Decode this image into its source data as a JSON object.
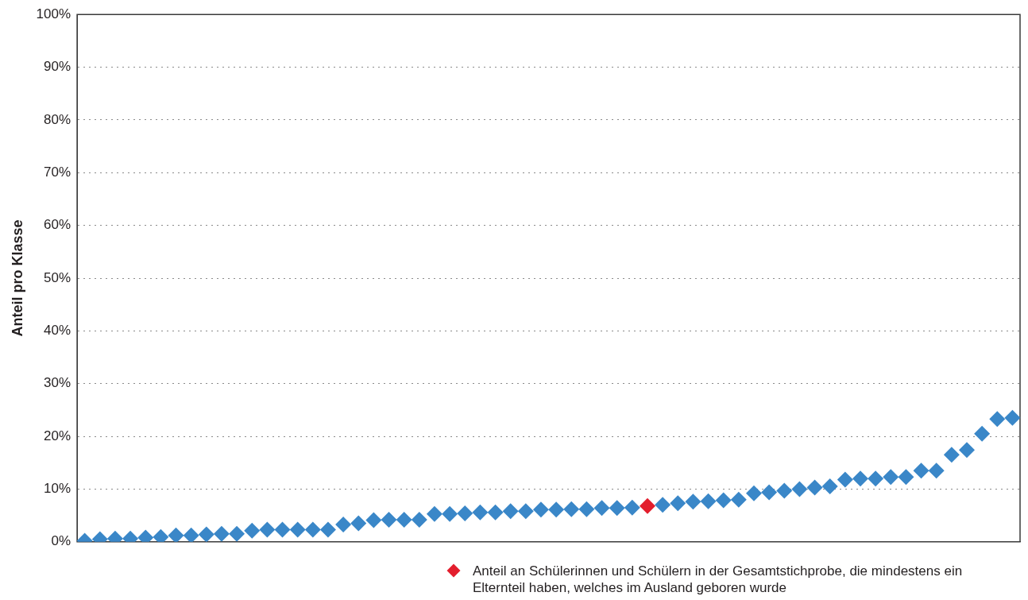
{
  "chart_data": {
    "type": "scatter",
    "ylabel": "Anteil pro Klasse",
    "categories": [
      null,
      null,
      null,
      null,
      null,
      null,
      null,
      null,
      null,
      null,
      null,
      null,
      null,
      null,
      null,
      null,
      null,
      null,
      null,
      null,
      null,
      null,
      null,
      null,
      null,
      null,
      null,
      null,
      null,
      null,
      null,
      null,
      null,
      null,
      null,
      null,
      null,
      null,
      null,
      null,
      null,
      null,
      null,
      null,
      null,
      null,
      null,
      null,
      null,
      null,
      null,
      null,
      null,
      null,
      null,
      null,
      null,
      null,
      null,
      null,
      null,
      null
    ],
    "series": [
      {
        "color": "#3a87c8",
        "values": [
          0.2,
          0.5,
          0.6,
          0.6,
          0.8,
          0.9,
          1.2,
          1.2,
          1.4,
          1.5,
          1.5,
          2.1,
          2.3,
          2.3,
          2.3,
          2.3,
          2.3,
          3.3,
          3.5,
          4.1,
          4.2,
          4.2,
          4.2,
          5.3,
          5.3,
          5.4,
          5.6,
          5.6,
          5.8,
          5.8,
          6.1,
          6.1,
          6.2,
          6.2,
          6.4,
          6.4,
          6.5,
          null,
          7.0,
          7.3,
          7.6,
          7.7,
          7.9,
          8.0,
          9.2,
          9.4,
          9.7,
          10.0,
          10.3,
          10.5,
          11.8,
          12.0,
          12.0,
          12.3,
          12.3,
          13.5,
          13.5,
          16.5,
          17.4,
          20.5,
          23.3,
          23.5
        ]
      },
      {
        "name": "Anteil an Schülerinnen und Schülern in der Gesamtstichprobe, die mindestens ein Elternteil haben, welches im Ausland geboren wurde",
        "color": "#e31e2d",
        "values": [
          null,
          null,
          null,
          null,
          null,
          null,
          null,
          null,
          null,
          null,
          null,
          null,
          null,
          null,
          null,
          null,
          null,
          null,
          null,
          null,
          null,
          null,
          null,
          null,
          null,
          null,
          null,
          null,
          null,
          null,
          null,
          null,
          null,
          null,
          null,
          null,
          null,
          6.8,
          null,
          null,
          null,
          null,
          null,
          null,
          null,
          null,
          null,
          null,
          null,
          null,
          null,
          null,
          null,
          null,
          null,
          null,
          null,
          null,
          null,
          null,
          null,
          null
        ]
      }
    ],
    "ylim": [
      0,
      100
    ],
    "yticks": [
      {
        "value": 0,
        "label": "0%"
      },
      {
        "value": 10,
        "label": "10%"
      },
      {
        "value": 20,
        "label": "20%"
      },
      {
        "value": 30,
        "label": "30%"
      },
      {
        "value": 40,
        "label": "40%"
      },
      {
        "value": 50,
        "label": "50%"
      },
      {
        "value": 60,
        "label": "60%"
      },
      {
        "value": 70,
        "label": "70%"
      },
      {
        "value": 80,
        "label": "80%"
      },
      {
        "value": 90,
        "label": "90%"
      },
      {
        "value": 100,
        "label": "100%"
      }
    ],
    "grid": "y",
    "legend": "bottom",
    "marker": "diamond",
    "tick_labels": "y"
  }
}
